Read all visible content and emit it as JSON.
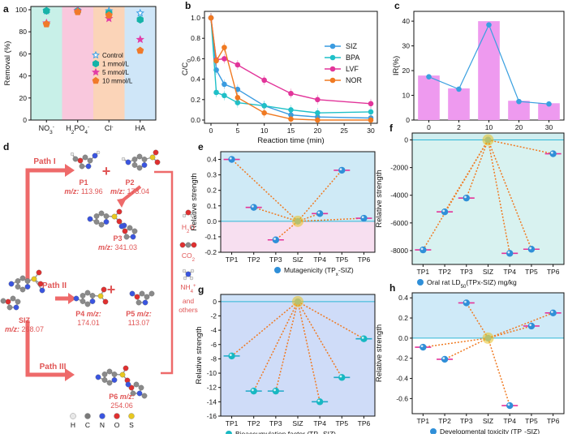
{
  "figure": {
    "panel_labels": [
      "a",
      "b",
      "c",
      "d",
      "e",
      "f",
      "g",
      "h"
    ]
  },
  "chart_data": [
    {
      "id": "a",
      "type": "scatter",
      "ylabel": "Removal (%)",
      "ylim": [
        0,
        100
      ],
      "yticks": [
        "0",
        "20",
        "40",
        "60",
        "80",
        "100"
      ],
      "categories": [
        "NO3-",
        "H2PO4-",
        "Cl-",
        "HA"
      ],
      "category_labels": {
        "NO3-": [
          "NO",
          "3",
          "-"
        ],
        "H2PO4-": [
          "H",
          "2",
          "PO",
          "4",
          "-"
        ],
        "Cl-": [
          "Cl",
          "",
          "-"
        ],
        "HA": [
          "HA",
          "",
          ""
        ]
      },
      "band_colors": [
        "#c8f0e8",
        "#f9c8dd",
        "#fbd4b8",
        "#cfe6f8"
      ],
      "series": [
        {
          "name": "Control",
          "marker": "star-open",
          "color": "#3aa0e8",
          "values": [
            99,
            99,
            99,
            97
          ]
        },
        {
          "name": "1 mmol/L",
          "marker": "hexagon",
          "color": "#16b3a8",
          "values": [
            99,
            99,
            97,
            91
          ]
        },
        {
          "name": "5 mmol/L",
          "marker": "star",
          "color": "#e23ca8",
          "values": [
            88,
            99,
            92,
            73
          ]
        },
        {
          "name": "10 mmol/L",
          "marker": "pentagon",
          "color": "#f07a2a",
          "values": [
            87,
            98,
            95,
            63
          ]
        }
      ]
    },
    {
      "id": "b",
      "type": "line",
      "xlabel": "Reaction time (min)",
      "ylabel": [
        "C/C",
        "0"
      ],
      "x": [
        0,
        1,
        2.5,
        5,
        10,
        15,
        20,
        30
      ],
      "xticks": [
        "0",
        "5",
        "10",
        "15",
        "20",
        "25",
        "30"
      ],
      "yticks": [
        "0.0",
        "0.2",
        "0.4",
        "0.6",
        "0.8",
        "1.0"
      ],
      "ylim": [
        0,
        1.05
      ],
      "series": [
        {
          "name": "SIZ",
          "color": "#3a9be0",
          "values": [
            1.0,
            0.49,
            0.35,
            0.3,
            0.14,
            0.05,
            0.03,
            0.02
          ]
        },
        {
          "name": "BPA",
          "color": "#1fc0c8",
          "values": [
            1.0,
            0.27,
            0.24,
            0.17,
            0.14,
            0.1,
            0.07,
            0.08
          ]
        },
        {
          "name": "LVF",
          "color": "#e2359a",
          "values": [
            1.0,
            0.59,
            0.6,
            0.54,
            0.39,
            0.26,
            0.2,
            0.16
          ]
        },
        {
          "name": "NOR",
          "color": "#f07a22",
          "values": [
            1.0,
            0.58,
            0.71,
            0.22,
            0.07,
            0.01,
            0.0,
            0.0
          ]
        }
      ]
    },
    {
      "id": "c",
      "type": "bar",
      "xlabel": "Reaction time (min)",
      "ylabel": "IR(%)",
      "categories": [
        "0",
        "2",
        "10",
        "20",
        "30"
      ],
      "bar_values": [
        18,
        12.8,
        40,
        7.8,
        6.8
      ],
      "line_values": [
        17.5,
        12.5,
        38.5,
        7.5,
        6.5
      ],
      "yticks": [
        "0",
        "10",
        "20",
        "30",
        "40"
      ],
      "ylim": [
        0,
        42
      ],
      "bar_color": "#ee9aef",
      "line_color": "#3aa0e0"
    },
    {
      "id": "e",
      "type": "scatter",
      "caption": "Mutagenicity (TP",
      "caption_sub": "x",
      "caption_tail": "-SIZ)",
      "ylabel": "Relative strength",
      "categories": [
        "TP1",
        "TP2",
        "TP3",
        "SIZ",
        "TP4",
        "TP5",
        "TP6"
      ],
      "values": [
        0.4,
        0.09,
        -0.12,
        0,
        0.05,
        0.33,
        0.02
      ],
      "yticks": [
        "-0.2",
        "-0.1",
        "0.0",
        "0.1",
        "0.2",
        "0.3",
        "0.4"
      ],
      "ylim": [
        -0.2,
        0.45
      ]
    },
    {
      "id": "f",
      "type": "scatter",
      "caption": "Oral rat LD",
      "caption_sub": "50",
      "caption_tail": "(TPx-SIZ) mg/kg",
      "ylabel": "Relative strength",
      "categories": [
        "TP1",
        "TP2",
        "TP3",
        "SIZ",
        "TP4",
        "TP5",
        "TP6"
      ],
      "values": [
        -7950,
        -5200,
        -4200,
        0,
        -8200,
        -7900,
        -1000
      ],
      "yticks": [
        "-8000",
        "-6000",
        "-4000",
        "-2000",
        "0"
      ],
      "ylim": [
        -9000,
        500
      ]
    },
    {
      "id": "g",
      "type": "scatter",
      "caption": "Bioaccumulation factor (TP",
      "caption_sub": "x",
      "caption_tail": "-SIZ)",
      "ylabel": "Relative strength",
      "categories": [
        "TP1",
        "TP2",
        "TP3",
        "SIZ",
        "TP4",
        "TP5",
        "TP6"
      ],
      "values": [
        -7.6,
        -12.5,
        -12.5,
        0,
        -14,
        -10.6,
        -5.2
      ],
      "yticks": [
        "-16",
        "-14",
        "-12",
        "-10",
        "-8",
        "-6",
        "-4",
        "-2",
        "0"
      ],
      "ylim": [
        -16,
        1
      ]
    },
    {
      "id": "h",
      "type": "scatter",
      "caption": "Developmental toxicity (TP",
      "caption_sub": "x",
      "caption_tail": "-SIZ)",
      "ylabel": "Relative strength",
      "categories": [
        "TP1",
        "TP2",
        "TP3",
        "SIZ",
        "TP4",
        "TP5",
        "TP6"
      ],
      "values": [
        -0.09,
        -0.21,
        0.35,
        0,
        -0.67,
        0.12,
        0.25
      ],
      "yticks": [
        "-0.6",
        "-0.4",
        "-0.2",
        "0.0",
        "0.2",
        "0.4"
      ],
      "ylim": [
        -0.75,
        0.45
      ]
    }
  ],
  "pathway": {
    "paths": [
      "Path I",
      "Path II",
      "Path III"
    ],
    "products": [
      {
        "name": "P1",
        "mz": "113.96"
      },
      {
        "name": "P2",
        "mz": "173.04"
      },
      {
        "name": "P3",
        "mz": "341.03"
      },
      {
        "name": "P4",
        "mz": "174.01"
      },
      {
        "name": "P5",
        "mz": "113.07"
      },
      {
        "name": "P6",
        "mz": "254.06"
      },
      {
        "name": "SIZ",
        "mz": "268.07"
      }
    ],
    "mz_label": "m/z:",
    "byproducts": [
      "H2O",
      "CO2",
      "NH4+",
      "and",
      "others"
    ],
    "legend": [
      {
        "el": "H",
        "color": "#e8e8e8"
      },
      {
        "el": "C",
        "color": "#7a7a7a"
      },
      {
        "el": "N",
        "color": "#3a55e0"
      },
      {
        "el": "O",
        "color": "#e03030"
      },
      {
        "el": "S",
        "color": "#e8c820"
      }
    ]
  }
}
